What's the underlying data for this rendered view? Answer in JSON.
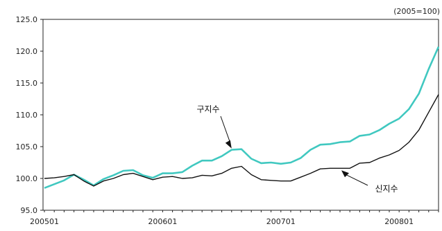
{
  "chart_data": {
    "type": "line",
    "unit_note": "(2005=100)",
    "ylim": [
      95.0,
      125.0
    ],
    "y_ticks": [
      "125.0",
      "120.0",
      "115.0",
      "110.0",
      "105.0",
      "100.0",
      "95.0"
    ],
    "x_ticks": [
      "200501",
      "200601",
      "200701",
      "200801"
    ],
    "series": [
      {
        "name": "구지수",
        "color": "#40c8c0",
        "values": [
          98.5,
          99.1,
          99.7,
          100.6,
          99.8,
          98.9,
          99.9,
          100.5,
          101.2,
          101.3,
          100.5,
          100.1,
          100.8,
          100.8,
          101.0,
          102.0,
          102.8,
          102.8,
          103.5,
          104.5,
          104.6,
          103.1,
          102.4,
          102.5,
          102.3,
          102.5,
          103.2,
          104.5,
          105.3,
          105.4,
          105.7,
          105.8,
          106.7,
          106.9,
          107.6,
          108.6,
          109.4,
          110.9,
          113.3,
          117.2,
          120.7
        ],
        "label_position": "upper-middle"
      },
      {
        "name": "신지수",
        "color": "#111111",
        "values": [
          100.0,
          100.1,
          100.3,
          100.6,
          99.6,
          98.8,
          99.6,
          100.0,
          100.6,
          100.8,
          100.3,
          99.8,
          100.2,
          100.3,
          100.0,
          100.1,
          100.5,
          100.4,
          100.8,
          101.6,
          101.9,
          100.6,
          99.8,
          99.7,
          99.6,
          99.6,
          100.2,
          100.8,
          101.5,
          101.6,
          101.6,
          101.6,
          102.4,
          102.5,
          103.2,
          103.7,
          104.4,
          105.7,
          107.6,
          110.4,
          113.2
        ],
        "label_position": "lower-right"
      }
    ],
    "grid": false,
    "legend": "none"
  }
}
